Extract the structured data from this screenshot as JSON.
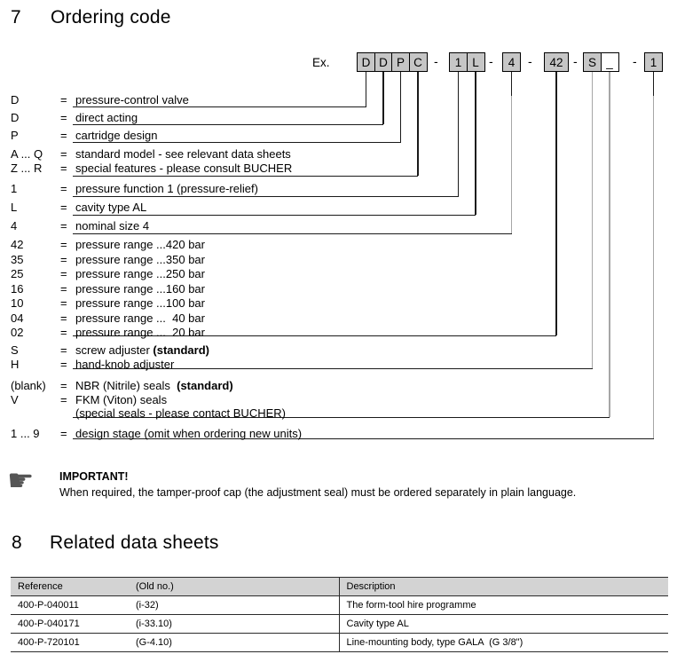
{
  "section7": {
    "number": "7",
    "title": "Ordering code"
  },
  "example": {
    "label": "Ex.",
    "separator": "-"
  },
  "ordering_code": {
    "groups": [
      {
        "cells": [
          {
            "ch": "D",
            "filled": true
          },
          {
            "ch": "D",
            "filled": true
          },
          {
            "ch": "P",
            "filled": true
          },
          {
            "ch": "C",
            "filled": true
          }
        ]
      },
      {
        "cells": [
          {
            "ch": "1",
            "filled": true
          },
          {
            "ch": "L",
            "filled": true
          }
        ]
      },
      {
        "cells": [
          {
            "ch": "4",
            "filled": true
          }
        ]
      },
      {
        "cells": [
          {
            "ch": "42",
            "filled": true
          }
        ]
      },
      {
        "cells": [
          {
            "ch": "S",
            "filled": true
          },
          {
            "ch": "_",
            "filled": false
          }
        ]
      },
      {
        "cells": [
          {
            "ch": "1",
            "filled": true
          }
        ]
      }
    ]
  },
  "ordering_rows": [
    {
      "symbol": "D",
      "eq": "=",
      "desc": "pressure-control valve",
      "desc_bold": ""
    },
    {
      "symbol": "D",
      "eq": "=",
      "desc": "direct acting",
      "desc_bold": ""
    },
    {
      "symbol": "P",
      "eq": "=",
      "desc": "cartridge design",
      "desc_bold": ""
    },
    {
      "symbol": "A ... Q",
      "eq": "=",
      "desc": "standard model - see relevant data sheets",
      "desc_bold": ""
    },
    {
      "symbol": "Z ... R",
      "eq": "=",
      "desc": "special features - please consult BUCHER",
      "desc_bold": ""
    },
    {
      "symbol": "1",
      "eq": "=",
      "desc": "pressure function 1 (pressure-relief)",
      "desc_bold": ""
    },
    {
      "symbol": "L",
      "eq": "=",
      "desc": "cavity type AL",
      "desc_bold": ""
    },
    {
      "symbol": "4",
      "eq": "=",
      "desc": "nominal size 4",
      "desc_bold": ""
    },
    {
      "symbol": "42",
      "eq": "=",
      "desc": "pressure range ...420 bar",
      "desc_bold": ""
    },
    {
      "symbol": "35",
      "eq": "=",
      "desc": "pressure range ...350 bar",
      "desc_bold": ""
    },
    {
      "symbol": "25",
      "eq": "=",
      "desc": "pressure range ...250 bar",
      "desc_bold": ""
    },
    {
      "symbol": "16",
      "eq": "=",
      "desc": "pressure range ...160 bar",
      "desc_bold": ""
    },
    {
      "symbol": "10",
      "eq": "=",
      "desc": "pressure range ...100 bar",
      "desc_bold": ""
    },
    {
      "symbol": "04",
      "eq": "=",
      "desc": "pressure range ...  40 bar",
      "desc_bold": ""
    },
    {
      "symbol": "02",
      "eq": "=",
      "desc": "pressure range ...  20 bar",
      "desc_bold": ""
    },
    {
      "symbol": "S",
      "eq": "=",
      "desc": "screw adjuster ",
      "desc_bold": "(standard)"
    },
    {
      "symbol": "H",
      "eq": "=",
      "desc": "hand-knob adjuster",
      "desc_bold": ""
    },
    {
      "symbol": "(blank)",
      "eq": "=",
      "desc": "NBR (Nitrile) seals  ",
      "desc_bold": "(standard)"
    },
    {
      "symbol": "V",
      "eq": "=",
      "desc": "FKM (Viton) seals",
      "desc_bold": ""
    },
    {
      "symbol": "",
      "eq": "",
      "desc": "(special seals - please contact BUCHER)",
      "desc_bold": ""
    },
    {
      "symbol": "1 ... 9",
      "eq": "=",
      "desc": "design stage (omit when ordering new units)",
      "desc_bold": ""
    }
  ],
  "note": {
    "icon_glyph": "☛",
    "title": "IMPORTANT!",
    "text": "When required, the tamper-proof cap (the adjustment seal) must be ordered separately in plain language."
  },
  "section8": {
    "number": "8",
    "title": "Related data sheets"
  },
  "table": {
    "headers": [
      "Reference",
      "(Old no.)",
      "Description"
    ],
    "rows": [
      [
        "400-P-040011",
        "(i-32)",
        "The form-tool hire programme"
      ],
      [
        "400-P-040171",
        "(i-33.10)",
        "Cavity type AL"
      ],
      [
        "400-P-720101",
        "(G-4.10)",
        "Line-mounting body, type GALA  (G 3/8\")"
      ]
    ]
  },
  "colors": {
    "box_fill": "#c6c6c6",
    "box_border": "#000000",
    "table_header_bg": "#d3d3d3",
    "connector_gray": "#a6a6a6",
    "text": "#000000"
  }
}
